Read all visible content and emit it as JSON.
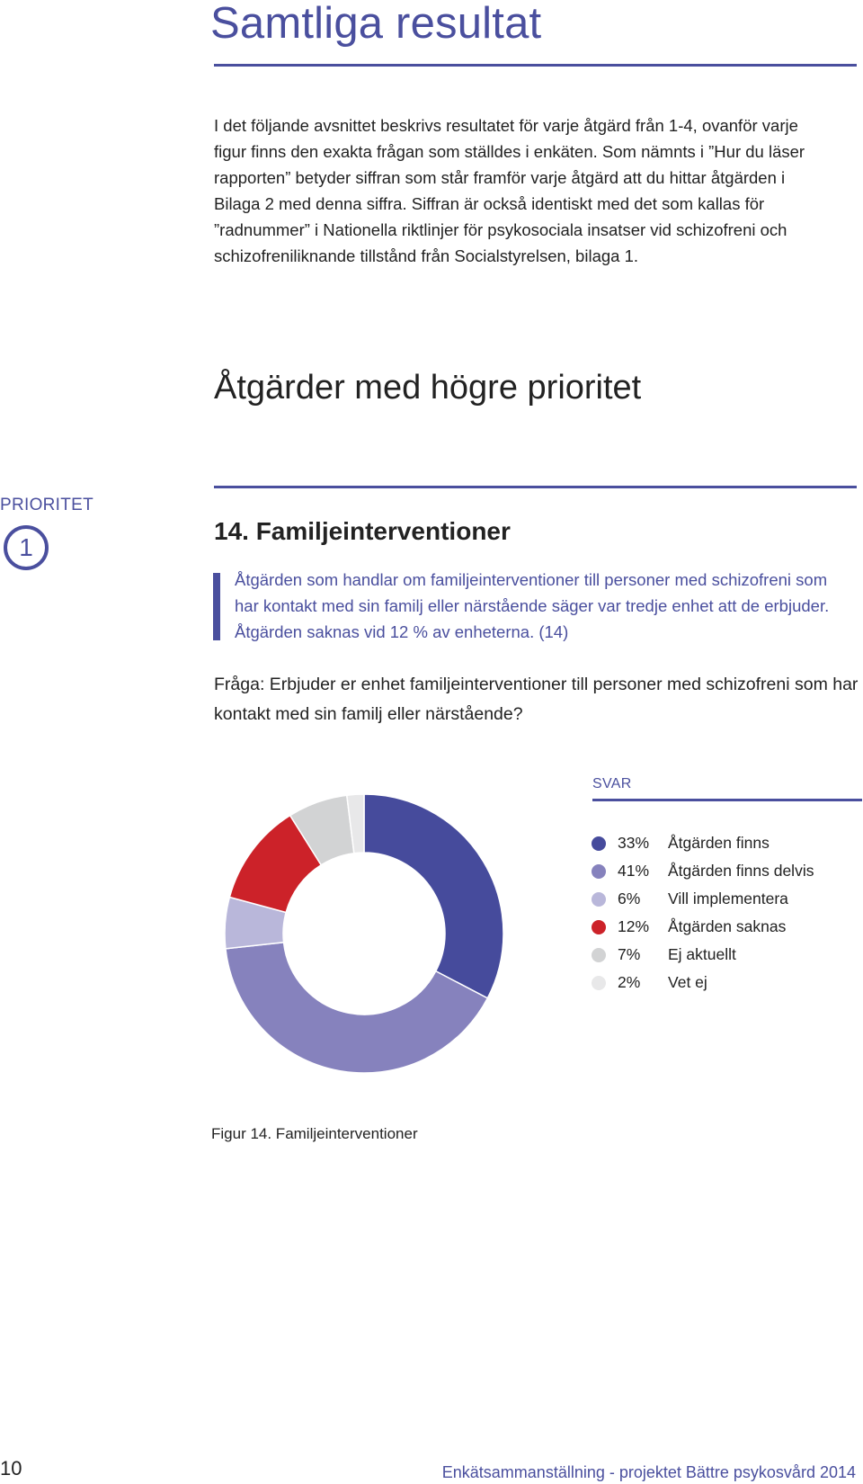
{
  "page": {
    "title": "Samtliga resultat",
    "intro": "I det följande avsnittet beskrivs resultatet för varje åtgärd från 1-4, ovanför varje figur finns den exakta frågan som ställdes i enkäten. Som nämnts i ”Hur du läser rapporten” betyder siffran som står framför varje åtgärd att du hittar åtgärden i Bilaga 2 med denna siffra. Siffran är också identiskt med det som kallas för ”radnummer” i Nationella riktlinjer för psykosociala insatser vid schizofreni och schizofreniliknande tillstånd från Socialstyrelsen, bilaga 1.",
    "section_heading": "Åtgärder med högre prioritet",
    "page_number": "10",
    "footer": "Enkätsammanställning - projektet Bättre psykosvård 2014"
  },
  "priority": {
    "label": "PRIORITET",
    "value": "1"
  },
  "item": {
    "title": "14. Familjeinterventioner",
    "quote": "Åtgärden som handlar om familjeinterventioner till personer med schizofreni som har kontakt med sin familj eller närstående säger var tredje enhet att de erbjuder. Åtgärden saknas vid 12 % av enheterna. (14)",
    "question": "Fråga: Erbjuder er enhet familjeinterventioner till personer med schizofreni som har kontakt med sin familj eller närstående?"
  },
  "legend_title": "SVAR",
  "caption": "Figur 14. Familjeinterventioner",
  "chart_data": {
    "type": "pie",
    "donut": true,
    "title": "",
    "legend_placement": "right",
    "start_angle_deg": 0,
    "direction": "clockwise",
    "slices": [
      {
        "label": "Åtgärden finns",
        "value": 33,
        "pct_label": "33%",
        "color": "#464b9c"
      },
      {
        "label": "Åtgärden finns delvis",
        "value": 41,
        "pct_label": "41%",
        "color": "#8682bd"
      },
      {
        "label": "Vill implementera",
        "value": 6,
        "pct_label": "6%",
        "color": "#b9b7da"
      },
      {
        "label": "Åtgärden saknas",
        "value": 12,
        "pct_label": "12%",
        "color": "#cc2229"
      },
      {
        "label": "Ej aktuellt",
        "value": 7,
        "pct_label": "7%",
        "color": "#d2d3d4"
      },
      {
        "label": "Vet ej",
        "value": 2,
        "pct_label": "2%",
        "color": "#e8e8e9"
      }
    ]
  }
}
